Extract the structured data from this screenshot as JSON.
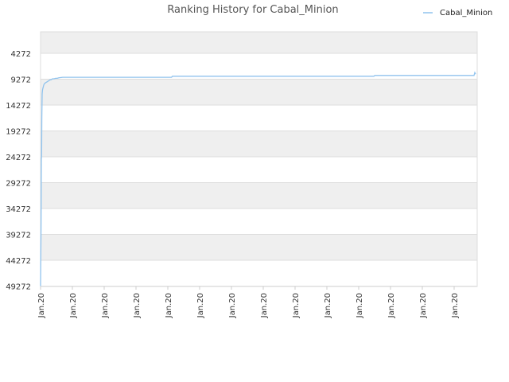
{
  "chart_data": {
    "type": "line",
    "title": "Ranking History for Cabal_Minion",
    "xlabel": "",
    "ylabel": "",
    "y_inverted": true,
    "ylim": [
      49272,
      0
    ],
    "y_ticks": [
      4272,
      9272,
      14272,
      19272,
      24272,
      29272,
      34272,
      39272,
      44272,
      49272
    ],
    "x_tick_labels": [
      "Jan.20",
      "Jan.20",
      "Jan.20",
      "Jan.20",
      "Jan.20",
      "Jan.20",
      "Jan.20",
      "Jan.20",
      "Jan.20",
      "Jan.20",
      "Jan.20",
      "Jan.20",
      "Jan.20",
      "Jan.20"
    ],
    "legend_position": "top-right",
    "grid": true,
    "series": [
      {
        "name": "Cabal_Minion",
        "color": "#90c3ee",
        "x": [
          0,
          0.3,
          0.6,
          1.0,
          1.3,
          1.6,
          2.0,
          2.5,
          3.0,
          3.5,
          4.0,
          5.0,
          6.0,
          7.0,
          8.0,
          9.0,
          10.0,
          11.0,
          12.0,
          13.0,
          14.0,
          15.0,
          17.0,
          19.0,
          21.0,
          23.0,
          28.0,
          35.0,
          45.0,
          60.0,
          80.0,
          100.0,
          130.0,
          150.0,
          160.0,
          165.0,
          166.0,
          200.0,
          250.0,
          300.0,
          350.0,
          400.0,
          420.0,
          421.0,
          450.0,
          500.0,
          540.0,
          546.0,
          547.0,
          548.0
        ],
        "y": [
          49272,
          43500,
          38200,
          24700,
          24200,
          16500,
          12100,
          11300,
          11000,
          10700,
          10400,
          10100,
          10000,
          9900,
          9800,
          9700,
          9600,
          9500,
          9400,
          9400,
          9300,
          9200,
          9200,
          9100,
          9100,
          9000,
          8900,
          8900,
          8900,
          8900,
          8900,
          8900,
          8900,
          8900,
          8900,
          8900,
          8700,
          8700,
          8700,
          8700,
          8700,
          8700,
          8700,
          8550,
          8550,
          8550,
          8550,
          8550,
          8000,
          8300
        ]
      }
    ]
  }
}
